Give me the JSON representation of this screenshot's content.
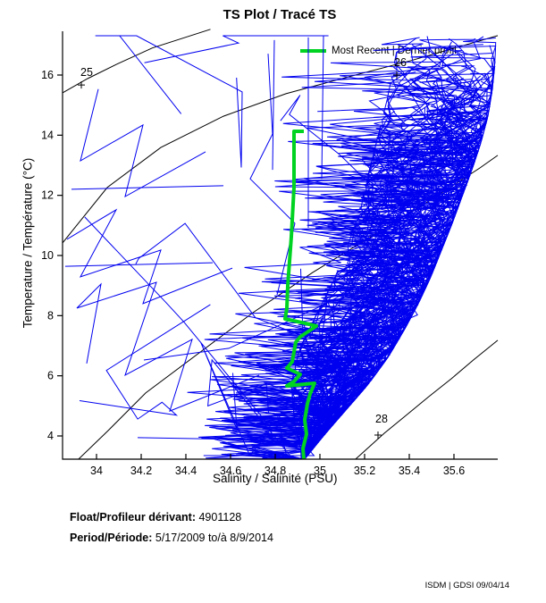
{
  "title": "TS Plot / Tracé TS",
  "legend": {
    "label": "Most Recent | Dernier profil"
  },
  "footer": {
    "float_label": "Float/Profileur dérivant:",
    "float_value": "4901128",
    "period_label": "Period/Période:",
    "period_value": "5/17/2009  to/à  8/9/2014"
  },
  "corner_text": "ISDM | GDSI  09/04/14",
  "chart_data": {
    "type": "line",
    "title": "TS Plot / Tracé TS",
    "xlabel": "Salinity / Salinité (PSU)",
    "ylabel": "Temperature / Température (°C)",
    "xlim": [
      33.848,
      35.796
    ],
    "ylim": [
      3.23,
      17.46
    ],
    "grid": false,
    "legend_position": "top-right-inside",
    "xticks": {
      "values": [
        34,
        34.2,
        34.4,
        34.6,
        34.8,
        35,
        35.2,
        35.4,
        35.6
      ],
      "labels": [
        "34",
        "34.2",
        "34.4",
        "34.6",
        "34.8",
        "35",
        "35.2",
        "35.4",
        "35.6"
      ]
    },
    "yticks": {
      "values": [
        4,
        6,
        8,
        10,
        12,
        14,
        16
      ],
      "labels": [
        "4",
        "6",
        "8",
        "10",
        "12",
        "14",
        "16"
      ]
    },
    "colors": {
      "profiles": "#0000f0",
      "most_recent": "#00d321",
      "contours": "#000000",
      "axis": "#000000"
    },
    "density_contours": [
      {
        "label": "25",
        "points": [
          [
            33.848,
            15.41
          ],
          [
            33.96,
            15.88
          ],
          [
            34.09,
            16.36
          ],
          [
            34.25,
            16.9
          ],
          [
            34.51,
            17.52
          ]
        ],
        "label_at": [
          33.956,
          16.09
        ],
        "anchor_plus_at": [
          33.932,
          15.67
        ]
      },
      {
        "label": "26",
        "points": [
          [
            33.848,
            10.42
          ],
          [
            34.048,
            12.26
          ],
          [
            34.288,
            13.59
          ],
          [
            34.568,
            14.63
          ],
          [
            34.848,
            15.38
          ],
          [
            35.128,
            15.94
          ],
          [
            35.408,
            16.48
          ],
          [
            35.796,
            17.31
          ]
        ],
        "label_at": [
          35.36,
          16.42
        ],
        "anchor_plus_at": [
          35.344,
          16.0
        ]
      },
      {
        "label": "",
        "points": [
          [
            33.92,
            3.23
          ],
          [
            34.048,
            4.15
          ],
          [
            34.22,
            5.43
          ],
          [
            34.7,
            8.1
          ],
          [
            34.968,
            9.44
          ],
          [
            35.248,
            10.71
          ],
          [
            35.488,
            11.81
          ],
          [
            35.716,
            12.91
          ],
          [
            35.796,
            13.33
          ]
        ],
        "label_at": null,
        "anchor_plus_at": null
      },
      {
        "label": "28",
        "points": [
          [
            35.16,
            3.23
          ],
          [
            35.288,
            4.09
          ],
          [
            35.38,
            4.65
          ],
          [
            35.488,
            5.31
          ],
          [
            35.588,
            5.9
          ],
          [
            35.688,
            6.53
          ],
          [
            35.796,
            7.18
          ]
        ],
        "label_at": [
          35.276,
          4.56
        ],
        "anchor_plus_at": [
          35.26,
          4.03
        ]
      }
    ],
    "most_recent_profile": {
      "name": "Most Recent | Dernier profil",
      "points": [
        [
          34.928,
          14.129
        ],
        [
          34.884,
          14.129
        ],
        [
          34.884,
          12.257
        ],
        [
          34.872,
          10.624
        ],
        [
          34.856,
          8.99
        ],
        [
          34.852,
          8.247
        ],
        [
          34.844,
          7.891
        ],
        [
          34.936,
          7.742
        ],
        [
          34.984,
          7.653
        ],
        [
          34.912,
          7.297
        ],
        [
          34.892,
          7.119
        ],
        [
          34.876,
          6.465
        ],
        [
          34.852,
          6.257
        ],
        [
          34.912,
          6.049
        ],
        [
          34.884,
          5.812
        ],
        [
          34.852,
          5.663
        ],
        [
          34.976,
          5.752
        ],
        [
          34.956,
          5.396
        ],
        [
          34.944,
          5.069
        ],
        [
          34.932,
          4.535
        ],
        [
          34.94,
          4.059
        ],
        [
          34.924,
          3.584
        ],
        [
          34.928,
          3.228
        ]
      ]
    },
    "historic_profiles": {
      "description": "dense bundle of prior TS profiles",
      "count_full": 100,
      "count_partial": 28,
      "count_scatter": 9,
      "seed": 20090517,
      "band_right_edge": [
        [
          34.932,
          3.23
        ],
        [
          35.008,
          3.94
        ],
        [
          35.112,
          4.83
        ],
        [
          35.216,
          5.72
        ],
        [
          35.304,
          6.61
        ],
        [
          35.376,
          7.51
        ],
        [
          35.44,
          8.4
        ],
        [
          35.496,
          9.29
        ],
        [
          35.544,
          10.18
        ],
        [
          35.592,
          11.07
        ],
        [
          35.636,
          11.96
        ],
        [
          35.68,
          12.85
        ],
        [
          35.72,
          13.74
        ],
        [
          35.752,
          14.63
        ],
        [
          35.772,
          15.53
        ],
        [
          35.784,
          16.42
        ],
        [
          35.788,
          17.31
        ]
      ],
      "band_left_edge": [
        [
          34.9,
          3.23
        ],
        [
          34.88,
          4.54
        ],
        [
          34.86,
          5.72
        ],
        [
          34.896,
          6.91
        ],
        [
          34.976,
          8.1
        ],
        [
          35.056,
          9.29
        ],
        [
          35.12,
          10.48
        ],
        [
          35.168,
          11.66
        ],
        [
          35.208,
          12.85
        ],
        [
          35.248,
          14.04
        ],
        [
          35.288,
          15.23
        ],
        [
          35.32,
          16.42
        ],
        [
          35.344,
          17.31
        ]
      ],
      "extra_profiles": [
        [
          [
            34.948,
            17.25
          ],
          [
            34.948,
            10.92
          ]
        ],
        [
          [
            34.796,
            17.16
          ],
          [
            34.788,
            12.85
          ]
        ],
        [
          [
            35.016,
            17.31
          ],
          [
            35.008,
            12.55
          ]
        ],
        [
          [
            33.956,
            6.41
          ],
          [
            34.02,
            9.05
          ],
          [
            33.912,
            8.25
          ],
          [
            34.268,
            9.11
          ],
          [
            34.128,
            6.02
          ],
          [
            34.428,
            7.21
          ],
          [
            34.328,
            4.83
          ],
          [
            34.728,
            6.02
          ]
        ],
        [
          [
            33.868,
            10.54
          ],
          [
            34.088,
            11.52
          ],
          [
            33.928,
            9.29
          ],
          [
            34.288,
            10.18
          ],
          [
            34.208,
            8.4
          ],
          [
            34.608,
            9.58
          ]
        ],
        [
          [
            34.008,
            15.53
          ],
          [
            33.928,
            13.15
          ],
          [
            34.208,
            14.34
          ],
          [
            34.128,
            11.96
          ],
          [
            34.488,
            13.45
          ]
        ],
        [
          [
            34.768,
            16.71
          ],
          [
            34.788,
            14.04
          ],
          [
            34.688,
            12.55
          ],
          [
            34.888,
            11.07
          ],
          [
            34.808,
            8.69
          ]
        ],
        [
          [
            33.86,
            9.64
          ],
          [
            34.52,
            9.76
          ]
        ],
        [
          [
            33.888,
            12.2
          ],
          [
            34.568,
            12.32
          ]
        ]
      ]
    }
  }
}
